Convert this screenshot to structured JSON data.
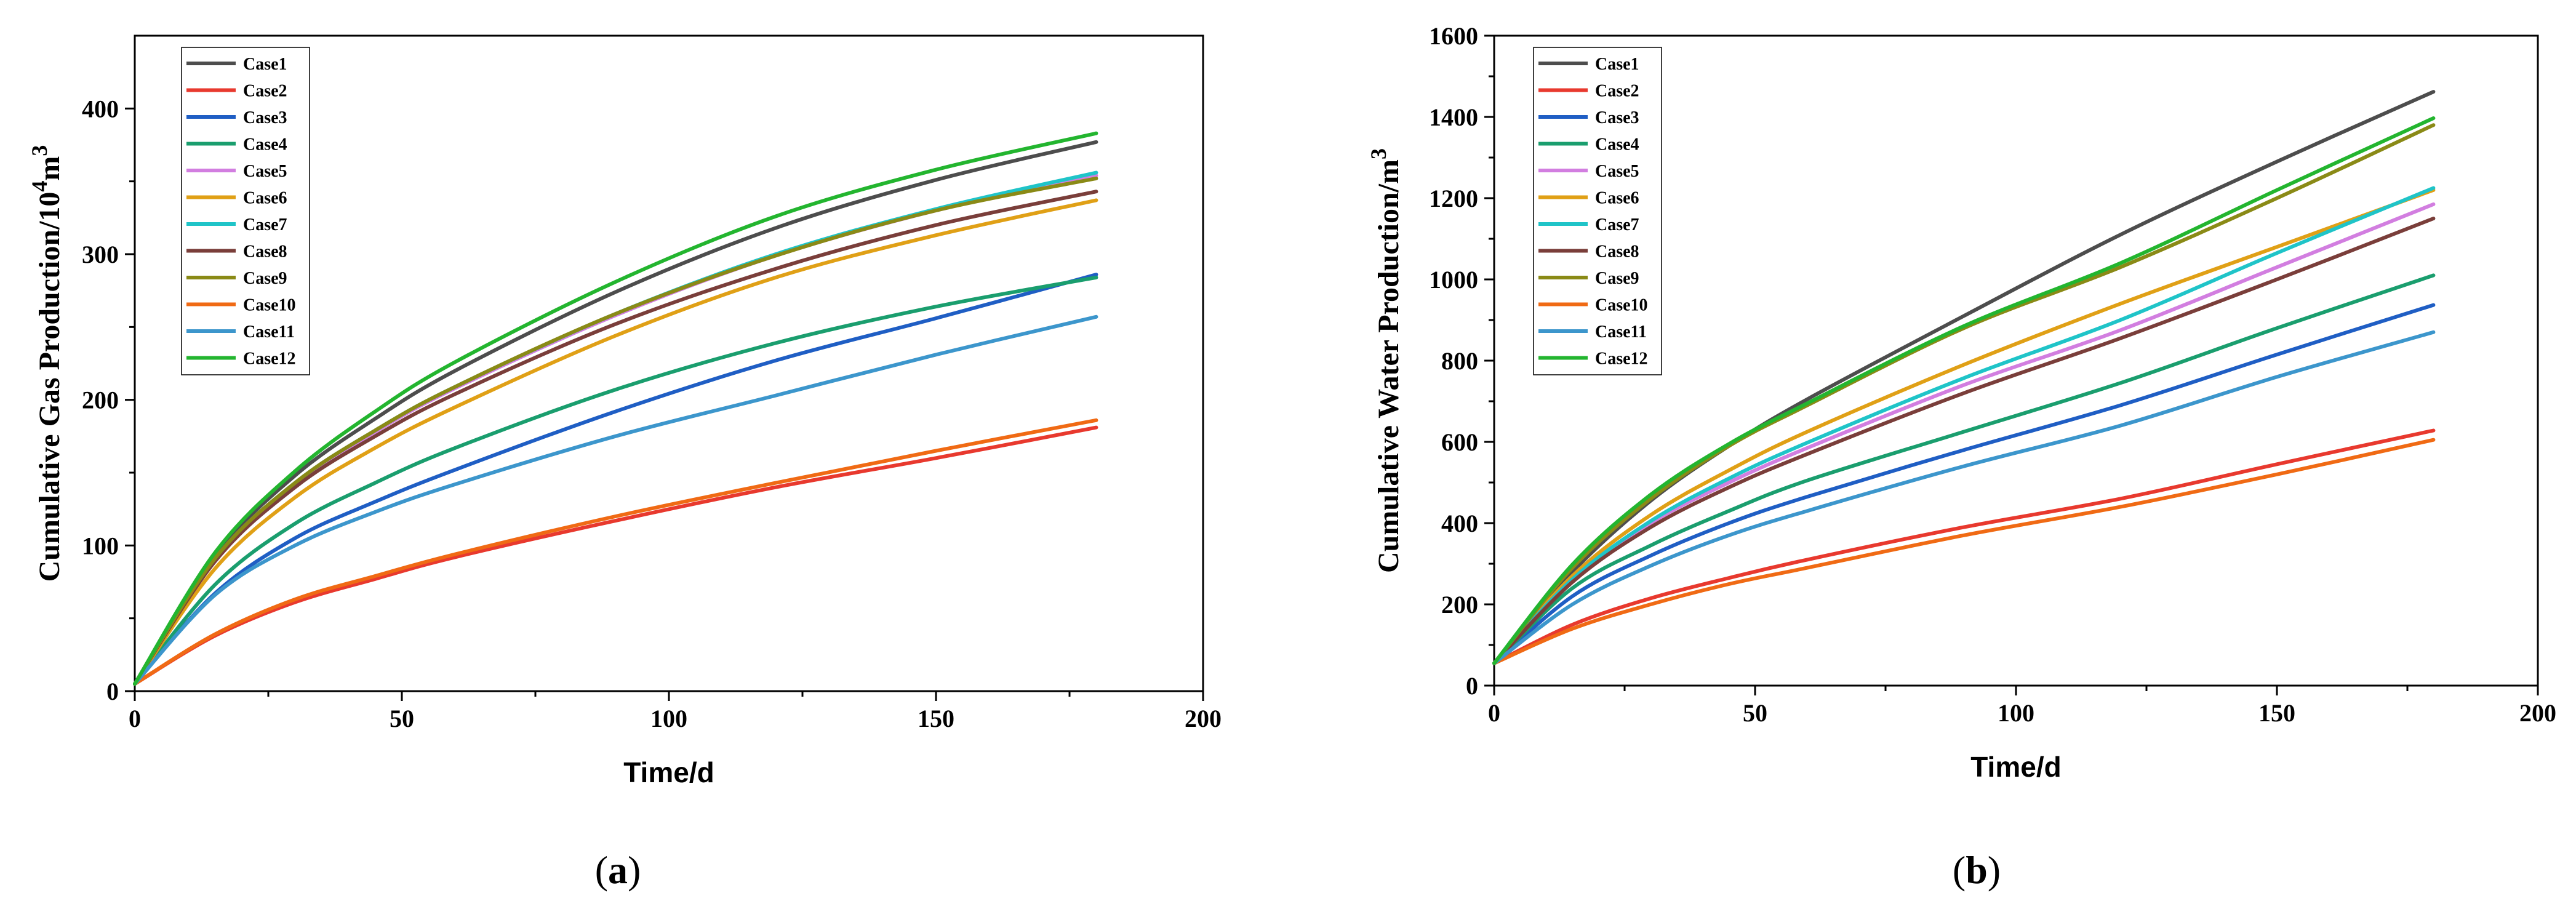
{
  "chart_data": [
    {
      "type": "line",
      "panel_open": "(",
      "panel_letter": "a",
      "panel_close": ")",
      "ylabel": "Cumulative Gas Production/10",
      "ylabel_sup": "4",
      "ylabel_unit": "m",
      "ylabel_unit_sup": "3",
      "xlabel": "Time/d",
      "xlim": [
        0,
        200
      ],
      "ylim": [
        0,
        450
      ],
      "xticks": [
        0,
        50,
        100,
        150,
        200
      ],
      "yticks": [
        0,
        100,
        200,
        300,
        400
      ],
      "x": [
        0,
        15,
        30,
        45,
        60,
        90,
        120,
        150,
        180
      ],
      "legend_position": "top-left",
      "series": [
        {
          "name": "Case1",
          "color": "#4d4d4d",
          "values": [
            5,
            93,
            148,
            187,
            220,
            274,
            318,
            351,
            377
          ]
        },
        {
          "name": "Case2",
          "color": "#e8392e",
          "values": [
            5,
            38,
            61,
            77,
            92,
            117,
            140,
            160,
            181
          ]
        },
        {
          "name": "Case3",
          "color": "#1f5ec4",
          "values": [
            5,
            67,
            105,
            130,
            152,
            192,
            227,
            256,
            286
          ]
        },
        {
          "name": "Case4",
          "color": "#1a9e6e",
          "values": [
            5,
            73,
            115,
            143,
            167,
            207,
            239,
            264,
            284
          ]
        },
        {
          "name": "Case5",
          "color": "#d27ee0",
          "values": [
            5,
            90,
            142,
            178,
            208,
            258,
            299,
            330,
            354
          ]
        },
        {
          "name": "Case6",
          "color": "#e0a016",
          "values": [
            5,
            84,
            133,
            167,
            195,
            244,
            284,
            313,
            337
          ]
        },
        {
          "name": "Case7",
          "color": "#1fc4c8",
          "values": [
            5,
            91,
            143,
            179,
            209,
            259,
            300,
            331,
            356
          ]
        },
        {
          "name": "Case8",
          "color": "#7a3e3a",
          "values": [
            5,
            89,
            140,
            175,
            204,
            252,
            290,
            320,
            343
          ]
        },
        {
          "name": "Case9",
          "color": "#8a8a16",
          "values": [
            5,
            91,
            143,
            179,
            209,
            259,
            299,
            330,
            352
          ]
        },
        {
          "name": "Case10",
          "color": "#f06a14",
          "values": [
            5,
            39,
            63,
            79,
            94,
            120,
            143,
            165,
            186
          ]
        },
        {
          "name": "Case11",
          "color": "#3c96cc",
          "values": [
            5,
            66,
            100,
            123,
            142,
            175,
            203,
            231,
            257
          ]
        },
        {
          "name": "Case12",
          "color": "#23b52f",
          "values": [
            5,
            95,
            151,
            192,
            226,
            281,
            326,
            358,
            383
          ]
        }
      ]
    },
    {
      "type": "line",
      "panel_open": "(",
      "panel_letter": "b",
      "panel_close": ")",
      "ylabel": "Cumulative Water Production/m",
      "ylabel_sup": "3",
      "xlabel": "Time/d",
      "xlim": [
        0,
        200
      ],
      "ylim": [
        0,
        1600
      ],
      "xticks": [
        0,
        50,
        100,
        150,
        200
      ],
      "yticks": [
        0,
        200,
        400,
        600,
        800,
        1000,
        1200,
        1400,
        1600
      ],
      "x": [
        0,
        15,
        30,
        45,
        60,
        90,
        120,
        150,
        180
      ],
      "legend_position": "top-left",
      "series": [
        {
          "name": "Case1",
          "color": "#4d4d4d",
          "values": [
            55,
            280,
            455,
            590,
            705,
            910,
            1110,
            1290,
            1462
          ]
        },
        {
          "name": "Case2",
          "color": "#e8392e",
          "values": [
            55,
            150,
            215,
            265,
            310,
            390,
            460,
            545,
            628
          ]
        },
        {
          "name": "Case3",
          "color": "#1f5ec4",
          "values": [
            55,
            220,
            320,
            400,
            465,
            580,
            690,
            815,
            937
          ]
        },
        {
          "name": "Case4",
          "color": "#1a9e6e",
          "values": [
            55,
            240,
            345,
            430,
            505,
            625,
            745,
            880,
            1010
          ]
        },
        {
          "name": "Case5",
          "color": "#d27ee0",
          "values": [
            55,
            260,
            400,
            500,
            585,
            740,
            875,
            1030,
            1185
          ]
        },
        {
          "name": "Case6",
          "color": "#e0a016",
          "values": [
            55,
            270,
            420,
            530,
            625,
            790,
            940,
            1080,
            1220
          ]
        },
        {
          "name": "Case7",
          "color": "#1fc4c8",
          "values": [
            55,
            262,
            405,
            510,
            598,
            757,
            900,
            1065,
            1225
          ]
        },
        {
          "name": "Case8",
          "color": "#7a3e3a",
          "values": [
            55,
            255,
            390,
            488,
            570,
            720,
            855,
            1000,
            1150
          ]
        },
        {
          "name": "Case9",
          "color": "#8a8a16",
          "values": [
            55,
            290,
            460,
            590,
            690,
            880,
            1030,
            1200,
            1380
          ]
        },
        {
          "name": "Case10",
          "color": "#f06a14",
          "values": [
            55,
            140,
            200,
            250,
            290,
            370,
            440,
            520,
            605
          ]
        },
        {
          "name": "Case11",
          "color": "#3c96cc",
          "values": [
            55,
            200,
            295,
            370,
            430,
            540,
            640,
            760,
            870
          ]
        },
        {
          "name": "Case12",
          "color": "#23b52f",
          "values": [
            55,
            298,
            470,
            595,
            695,
            885,
            1040,
            1220,
            1397
          ]
        }
      ]
    }
  ]
}
